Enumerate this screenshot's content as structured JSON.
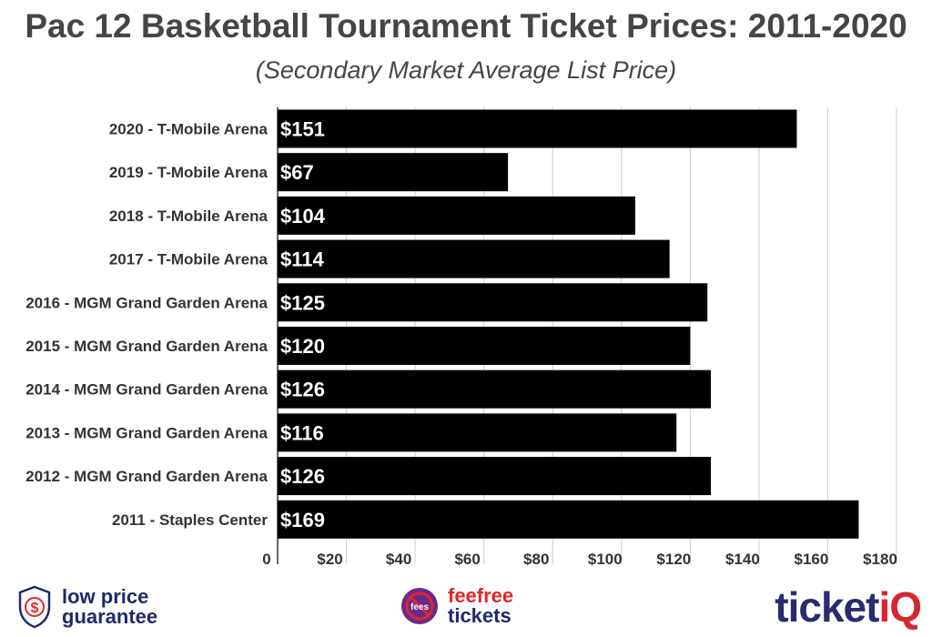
{
  "chart_data": {
    "type": "bar",
    "orientation": "horizontal",
    "title": "Pac 12 Basketball Tournament Ticket Prices: 2011-2020",
    "subtitle": "(Secondary Market Average List Price)",
    "xlabel": "",
    "ylabel": "",
    "categories": [
      "2020 - T-Mobile Arena",
      "2019 - T-Mobile Arena",
      "2018 - T-Mobile Arena",
      "2017 - T-Mobile Arena",
      "2016 - MGM Grand Garden Arena",
      "2015 - MGM Grand Garden Arena",
      "2014 - MGM Grand Garden Arena",
      "2013 - MGM Grand Garden Arena",
      "2012 - MGM Grand Garden Arena",
      "2011 - Staples Center"
    ],
    "values": [
      151,
      67,
      104,
      114,
      125,
      120,
      126,
      116,
      126,
      169
    ],
    "data_labels": [
      "$151",
      "$67",
      "$104",
      "$114",
      "$125",
      "$120",
      "$126",
      "$116",
      "$126",
      "$169"
    ],
    "xlim": [
      0,
      180
    ],
    "ticks": [
      0,
      20,
      40,
      60,
      80,
      100,
      120,
      140,
      160,
      180
    ],
    "tick_labels": [
      "0",
      "$20",
      "$40",
      "$60",
      "$80",
      "$100",
      "$120",
      "$140",
      "$160",
      "$180"
    ],
    "grid": true,
    "legend": "none",
    "bar_color": "#000000"
  },
  "footer": {
    "guarantee_line1": "low price",
    "guarantee_line2": "guarantee",
    "guarantee_icon": "dollar-shield-icon",
    "feefree_line1": "feefree",
    "feefree_line2": "tickets",
    "feefree_icon": "no-fees-icon",
    "fees_word": "fees",
    "brand_main": "ticket",
    "brand_accent": "iQ"
  },
  "colors": {
    "bar": "#000000",
    "grid": "#cccccc",
    "title": "#454545",
    "brand_navy": "#2a2c6e",
    "brand_red": "#d8262f",
    "fee_red": "#e0262b"
  }
}
